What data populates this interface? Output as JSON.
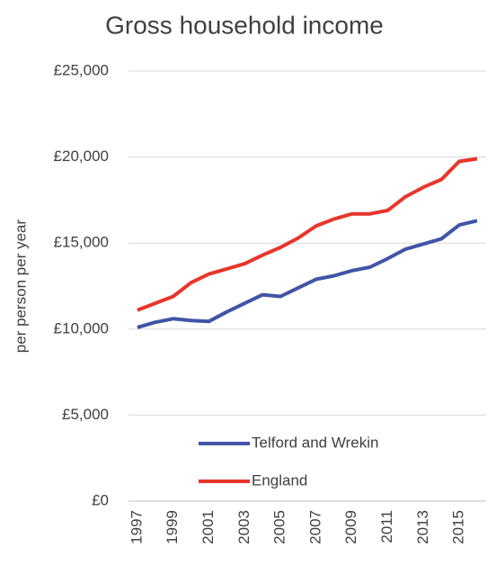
{
  "chart_data": {
    "type": "line",
    "title": "Gross household income",
    "y_label": "per person per year",
    "categories": [
      "1997",
      null,
      "1999",
      null,
      "2001",
      null,
      "2003",
      null,
      "2005",
      null,
      "2007",
      null,
      "2009",
      null,
      "2011",
      null,
      "2013",
      null,
      "2015",
      null
    ],
    "series": [
      {
        "name": "Telford and Wrekin",
        "color": "#4154a6",
        "values": [
          10100,
          10400,
          10600,
          10500,
          10450,
          11000,
          11500,
          12000,
          11900,
          12400,
          12900,
          13100,
          13400,
          13600,
          14100,
          14650,
          14950,
          15250,
          16050,
          16300
        ]
      },
      {
        "name": "England",
        "color": "#e8352b",
        "values": [
          11100,
          11500,
          11900,
          12700,
          13200,
          13500,
          13800,
          14300,
          14750,
          15300,
          16000,
          16400,
          16700,
          16700,
          16900,
          17700,
          18250,
          18700,
          19750,
          19900
        ]
      }
    ],
    "ylim": [
      0,
      25000
    ],
    "yticks": [
      {
        "value": 0,
        "label": "£0"
      },
      {
        "value": 5000,
        "label": "£5,000"
      },
      {
        "value": 10000,
        "label": "£10,000"
      },
      {
        "value": 15000,
        "label": "£15,000"
      },
      {
        "value": 20000,
        "label": "£20,000"
      },
      {
        "value": 25000,
        "label": "£25,000"
      }
    ],
    "grid": true,
    "legend": "lower right"
  }
}
